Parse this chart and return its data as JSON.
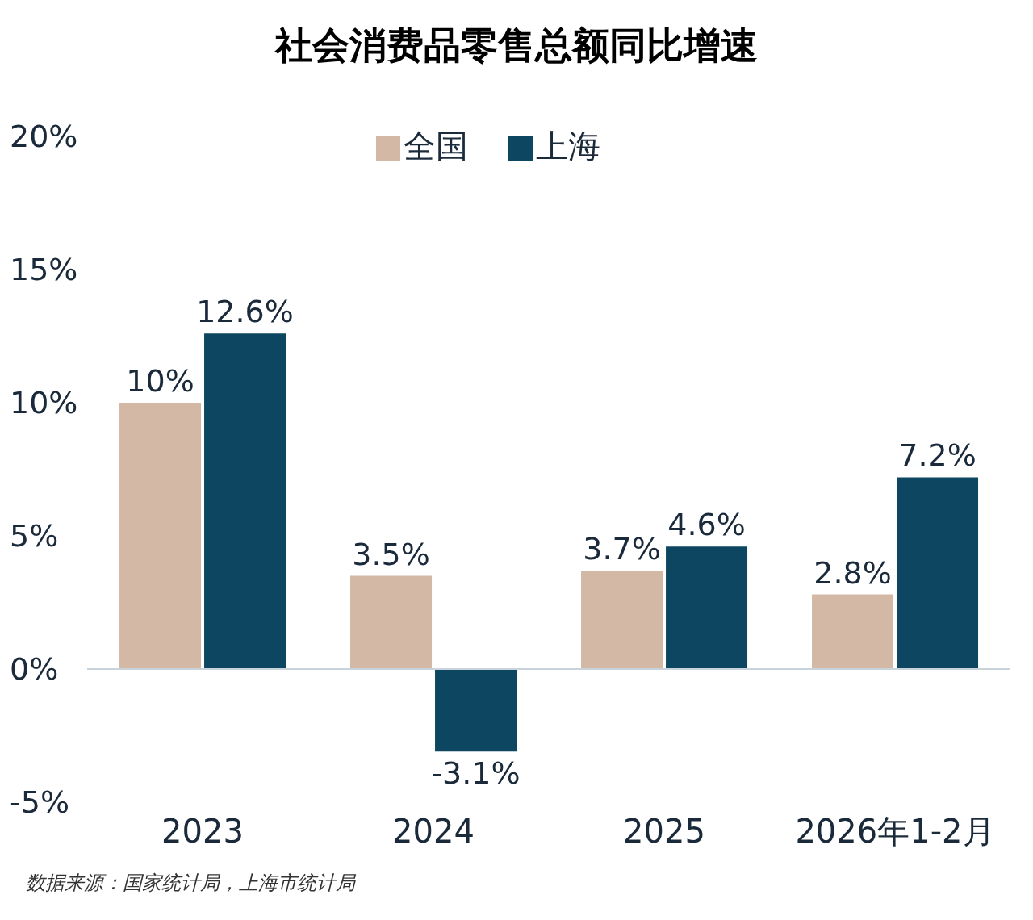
{
  "chart_data": {
    "type": "bar",
    "title": "社会消费品零售总额同比增速",
    "categories": [
      "2023",
      "2024",
      "2025",
      "2026年1-2月"
    ],
    "series": [
      {
        "name": "全国",
        "color": "#d3b8a5",
        "values": [
          10,
          3.5,
          3.7,
          2.8
        ],
        "value_labels": [
          "10%",
          "3.5%",
          "3.7%",
          "2.8%"
        ]
      },
      {
        "name": "上海",
        "color": "#0c4660",
        "values": [
          12.6,
          -3.1,
          4.6,
          7.2
        ],
        "value_labels": [
          "12.6%",
          "-3.1%",
          "4.6%",
          "7.2%"
        ]
      }
    ],
    "ylim": [
      -5,
      20
    ],
    "yticks": [
      {
        "value": -5,
        "label": "-5%"
      },
      {
        "value": 0,
        "label": "0%"
      },
      {
        "value": 5,
        "label": "5%"
      },
      {
        "value": 10,
        "label": "10%"
      },
      {
        "value": 15,
        "label": "15%"
      },
      {
        "value": 20,
        "label": "20%"
      }
    ],
    "ref_lines": [
      {
        "axis": "y",
        "value": 0,
        "color": "#c9d3dc"
      }
    ],
    "legend": "top",
    "annotations": [
      "数据来源：国家统计局，上海市统计局"
    ]
  }
}
